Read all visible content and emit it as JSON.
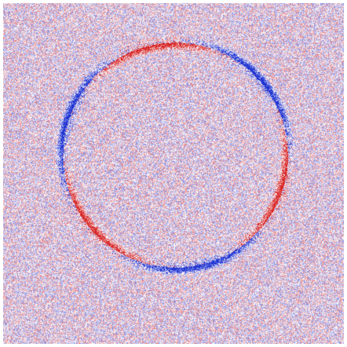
{
  "image": {
    "description_kind": "residual-map",
    "palette": {
      "positive": "#d62020",
      "negative": "#1f33d1",
      "neutral": "#ffffff"
    },
    "features": [
      {
        "name": "ring",
        "visible": true
      },
      {
        "name": "speckle-noise",
        "visible": true
      }
    ]
  }
}
